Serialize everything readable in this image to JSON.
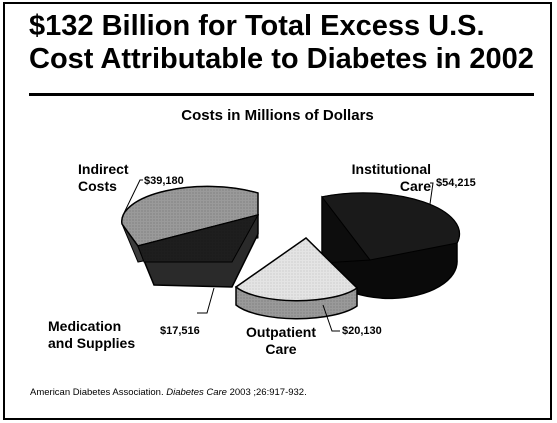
{
  "title": {
    "line1": "$132 Billion for Total Excess U.S.",
    "line2": "Cost Attributable to Diabetes in 2002"
  },
  "source": {
    "prefix": "American Diabetes Association.",
    "journal": "Diabetes Care",
    "suffix": "2003 ;26:917-932."
  },
  "chart_data": {
    "type": "pie",
    "title": "Costs in Millions of Dollars",
    "slices": [
      {
        "category_lines": [
          "Institutional",
          "Care"
        ],
        "value": 54215,
        "value_label": "$54,215",
        "color": "#151515"
      },
      {
        "category_lines": [
          "Outpatient",
          "Care"
        ],
        "value": 20130,
        "value_label": "$20,130",
        "color": "#dcdcdc"
      },
      {
        "category_lines": [
          "Medication",
          "and Supplies"
        ],
        "value": 17516,
        "value_label": "$17,516",
        "color": "#2a2a2a"
      },
      {
        "category_lines": [
          "Indirect",
          "Costs"
        ],
        "value": 39180,
        "value_label": "$39,180",
        "color": "#8c8c8c"
      }
    ]
  }
}
